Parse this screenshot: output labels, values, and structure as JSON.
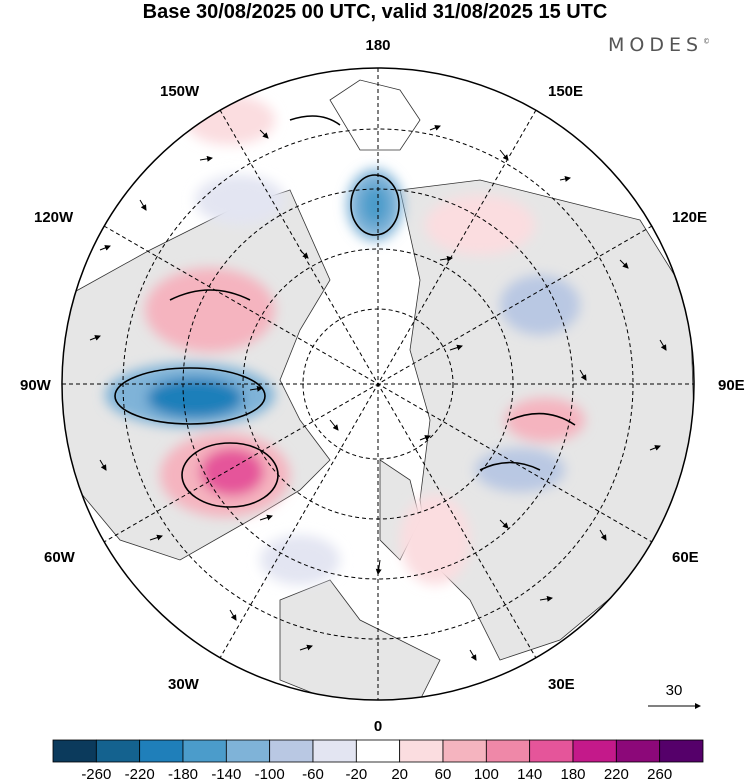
{
  "title": "Base 30/08/2025 00 UTC, valid 31/08/2025 15 UTC",
  "brand": "MODES",
  "brand_mark": "©",
  "longitude_labels": {
    "top": "180",
    "bottom": "0",
    "left": "90W",
    "right": "90E",
    "upper_left_1": "150W",
    "upper_left_2": "120W",
    "upper_right_1": "150E",
    "upper_right_2": "120E",
    "lower_left_1": "60W",
    "lower_left_2": "30W",
    "lower_right_1": "60E",
    "lower_right_2": "30E"
  },
  "wind_reference": {
    "label": "30",
    "icon": "arrow-right-icon"
  },
  "colorbar": {
    "ticks": [
      "-260",
      "-220",
      "-180",
      "-140",
      "-100",
      "-60",
      "-20",
      "20",
      "60",
      "100",
      "140",
      "180",
      "220",
      "260"
    ],
    "colors": [
      "#0b3a5c",
      "#14628f",
      "#1f7fba",
      "#4b9ccb",
      "#7fb3d8",
      "#b9c8e3",
      "#e3e5f2",
      "#ffffff",
      "#fbdde0",
      "#f5b4bf",
      "#ef88a8",
      "#e5559a",
      "#c4198a",
      "#8c0879",
      "#55006a"
    ]
  },
  "colors": {
    "land": "#e9e9e9",
    "ocean": "#ffffff",
    "grid": "#000000"
  }
}
